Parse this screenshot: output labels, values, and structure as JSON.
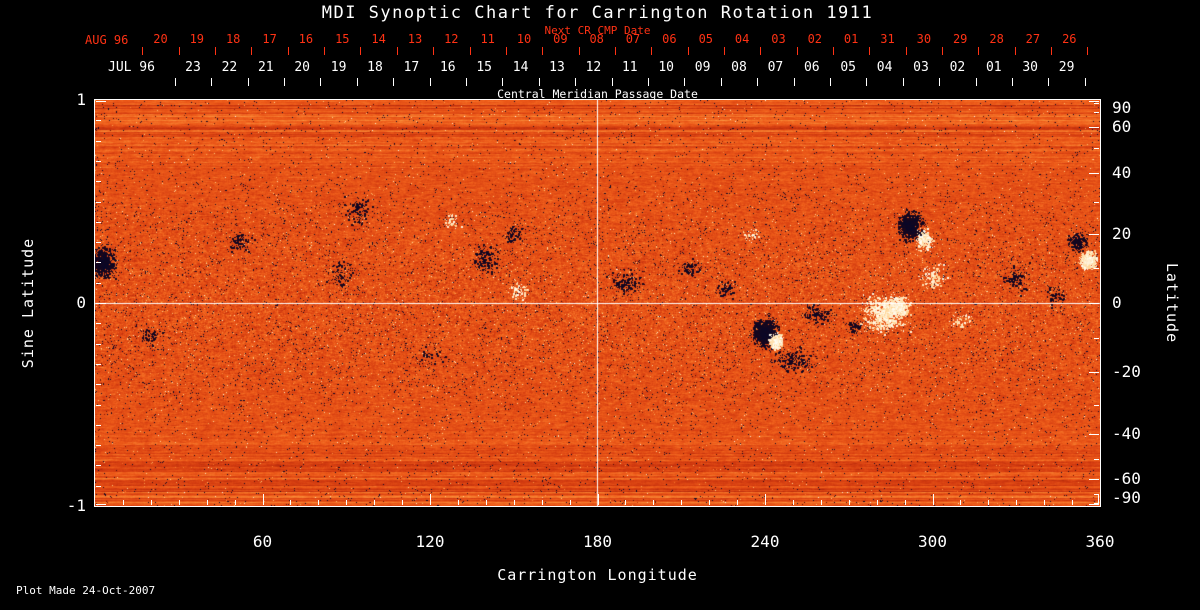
{
  "title": "MDI Synoptic Chart for Carrington Rotation 1911",
  "annotations": {
    "next_cr_cmp_date": "Next CR CMP Date",
    "central_meridian_passage_date": "Central Meridian Passage Date",
    "plot_made": "Plot Made 24-Oct-2007"
  },
  "colors": {
    "background": "#000000",
    "foreground": "#ffffff",
    "date_axis_red": "#ff3214",
    "quiet_sun_orange": "#e05a16",
    "negative_field_dark": "#0a0a2e",
    "positive_field_white": "#ffffff"
  },
  "chart_data": {
    "type": "heatmap",
    "title": "MDI Synoptic Chart for Carrington Rotation 1911",
    "description": "Full-rotation synoptic magnetogram of the Sun for Carrington rotation 1911; orange speckle = quiet Sun, white/yellow = positive magnetic field, black/navy = negative magnetic field",
    "xlabel": "Carrington Longitude",
    "ylabel_left": "Sine Latitude",
    "ylabel_right": "Latitude",
    "xlim": [
      0,
      360
    ],
    "ylim_sine_latitude": [
      -1,
      1
    ],
    "x_ticks": [
      60,
      120,
      180,
      240,
      300,
      360
    ],
    "x_minor_tick_step": 10,
    "y_ticks_left": [
      1,
      0,
      -1
    ],
    "y_ticks_right": [
      90,
      60,
      40,
      20,
      0,
      -20,
      -40,
      -60,
      -90
    ],
    "grid_lines": {
      "longitude": [
        180
      ],
      "sine_latitude": [
        0
      ]
    },
    "legend_position": "none",
    "top_axis_next_cr": {
      "month": "AUG 96",
      "days": [
        "20",
        "19",
        "18",
        "17",
        "16",
        "15",
        "14",
        "13",
        "12",
        "11",
        "10",
        "09",
        "08",
        "07",
        "06",
        "05",
        "04",
        "03",
        "02",
        "01",
        "31",
        "30",
        "29",
        "28",
        "27",
        "26"
      ]
    },
    "top_axis_cmp": {
      "month": "JUL 96",
      "days": [
        "23",
        "22",
        "21",
        "20",
        "19",
        "18",
        "17",
        "16",
        "15",
        "14",
        "13",
        "12",
        "11",
        "10",
        "09",
        "08",
        "07",
        "06",
        "05",
        "04",
        "03",
        "02",
        "01",
        "30",
        "29"
      ]
    },
    "active_regions": [
      {
        "lon": 3,
        "sinlat": 0.2,
        "rlon": 6,
        "rsin": 0.1,
        "amp": -0.95,
        "n": 600,
        "core": true
      },
      {
        "lon": 356,
        "sinlat": 0.21,
        "rlon": 4,
        "rsin": 0.06,
        "amp": 1.0,
        "n": 420,
        "core": true
      },
      {
        "lon": 352,
        "sinlat": 0.3,
        "rlon": 5,
        "rsin": 0.06,
        "amp": -0.8,
        "n": 260
      },
      {
        "lon": 240,
        "sinlat": -0.15,
        "rlon": 6,
        "rsin": 0.09,
        "amp": -1.0,
        "n": 900,
        "core": true
      },
      {
        "lon": 244,
        "sinlat": -0.19,
        "rlon": 3,
        "rsin": 0.045,
        "amp": 1.0,
        "n": 420,
        "core": true
      },
      {
        "lon": 250,
        "sinlat": -0.28,
        "rlon": 9,
        "rsin": 0.08,
        "amp": -0.6,
        "n": 350
      },
      {
        "lon": 259,
        "sinlat": -0.06,
        "rlon": 7,
        "rsin": 0.07,
        "amp": -0.55,
        "n": 260
      },
      {
        "lon": 283,
        "sinlat": -0.05,
        "rlon": 11,
        "rsin": 0.12,
        "amp": 0.8,
        "n": 1000
      },
      {
        "lon": 288,
        "sinlat": -0.02,
        "rlon": 5,
        "rsin": 0.06,
        "amp": 1.0,
        "n": 380,
        "core": true
      },
      {
        "lon": 272,
        "sinlat": -0.12,
        "rlon": 4,
        "rsin": 0.05,
        "amp": -0.5,
        "n": 140
      },
      {
        "lon": 292,
        "sinlat": 0.38,
        "rlon": 6,
        "rsin": 0.09,
        "amp": -0.95,
        "n": 700,
        "core": true
      },
      {
        "lon": 297,
        "sinlat": 0.31,
        "rlon": 4,
        "rsin": 0.07,
        "amp": 0.75,
        "n": 300
      },
      {
        "lon": 300,
        "sinlat": 0.13,
        "rlon": 6,
        "rsin": 0.08,
        "amp": 0.55,
        "n": 220
      },
      {
        "lon": 52,
        "sinlat": 0.3,
        "rlon": 6,
        "rsin": 0.08,
        "amp": -0.5,
        "n": 200
      },
      {
        "lon": 95,
        "sinlat": 0.45,
        "rlon": 7,
        "rsin": 0.09,
        "amp": -0.5,
        "n": 240
      },
      {
        "lon": 88,
        "sinlat": 0.14,
        "rlon": 7,
        "rsin": 0.1,
        "amp": -0.4,
        "n": 180
      },
      {
        "lon": 140,
        "sinlat": 0.21,
        "rlon": 7,
        "rsin": 0.1,
        "amp": -0.55,
        "n": 300
      },
      {
        "lon": 150,
        "sinlat": 0.34,
        "rlon": 5,
        "rsin": 0.06,
        "amp": -0.45,
        "n": 160
      },
      {
        "lon": 152,
        "sinlat": 0.06,
        "rlon": 5,
        "rsin": 0.06,
        "amp": 0.5,
        "n": 150
      },
      {
        "lon": 128,
        "sinlat": 0.4,
        "rlon": 4,
        "rsin": 0.05,
        "amp": 0.45,
        "n": 90
      },
      {
        "lon": 190,
        "sinlat": 0.1,
        "rlon": 8,
        "rsin": 0.08,
        "amp": -0.55,
        "n": 300
      },
      {
        "lon": 213,
        "sinlat": 0.17,
        "rlon": 5,
        "rsin": 0.06,
        "amp": -0.5,
        "n": 160
      },
      {
        "lon": 226,
        "sinlat": 0.07,
        "rlon": 5,
        "rsin": 0.06,
        "amp": -0.45,
        "n": 140
      },
      {
        "lon": 20,
        "sinlat": -0.16,
        "rlon": 8,
        "rsin": 0.07,
        "amp": -0.4,
        "n": 160
      },
      {
        "lon": 120,
        "sinlat": -0.26,
        "rlon": 8,
        "rsin": 0.07,
        "amp": -0.35,
        "n": 140
      },
      {
        "lon": 330,
        "sinlat": 0.12,
        "rlon": 7,
        "rsin": 0.09,
        "amp": -0.5,
        "n": 240
      },
      {
        "lon": 344,
        "sinlat": 0.04,
        "rlon": 5,
        "rsin": 0.07,
        "amp": -0.45,
        "n": 160
      },
      {
        "lon": 310,
        "sinlat": -0.09,
        "rlon": 5,
        "rsin": 0.06,
        "amp": 0.45,
        "n": 120
      },
      {
        "lon": 235,
        "sinlat": 0.33,
        "rlon": 4,
        "rsin": 0.05,
        "amp": 0.4,
        "n": 80
      }
    ]
  }
}
